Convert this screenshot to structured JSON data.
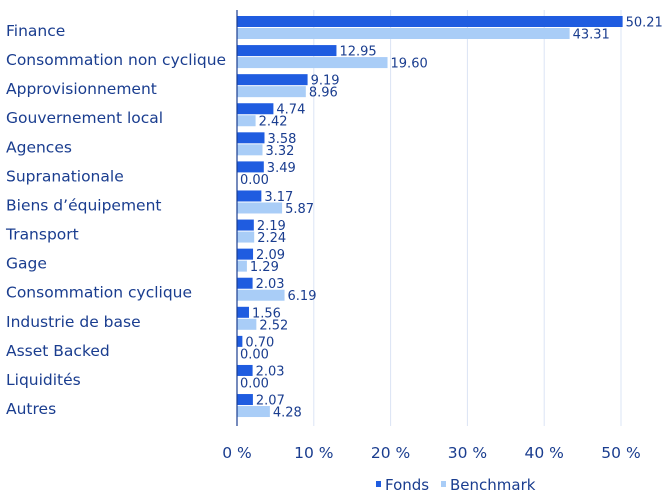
{
  "chart_data": {
    "type": "bar",
    "orientation": "horizontal",
    "categories": [
      "Finance",
      "Consommation non cyclique",
      "Approvisionnement",
      "Gouvernement local",
      "Agences",
      "Supranationale",
      "Biens d’équipement",
      "Transport",
      "Gage",
      "Consommation cyclique",
      "Industrie de base",
      "Asset Backed",
      "Liquidités",
      "Autres"
    ],
    "series": [
      {
        "name": "Fonds",
        "color": "#1f5ce0",
        "values": [
          50.21,
          12.95,
          9.19,
          4.74,
          3.58,
          3.49,
          3.17,
          2.19,
          2.09,
          2.03,
          1.56,
          0.7,
          2.03,
          2.07
        ],
        "labels": [
          "50.21",
          "12.95",
          "9.19",
          "4.74",
          "3.58",
          "3.49",
          "3.17",
          "2.19",
          "2.09",
          "2.03",
          "1.56",
          "0.70",
          "2.03",
          "2.07"
        ]
      },
      {
        "name": "Benchmark",
        "color": "#a9cdf7",
        "values": [
          43.31,
          19.6,
          8.96,
          2.42,
          3.32,
          0.0,
          5.87,
          2.24,
          1.29,
          6.19,
          2.52,
          0.0,
          0.0,
          4.28
        ],
        "labels": [
          "43.31",
          "19.60",
          "8.96",
          "2.42",
          "3.32",
          "0.00",
          "5.87",
          "2.24",
          "1.29",
          "6.19",
          "2.52",
          "0.00",
          "0.00",
          "4.28"
        ]
      }
    ],
    "xlim": [
      0,
      50
    ],
    "xticks": [
      0,
      10,
      20,
      30,
      40,
      50
    ],
    "xtick_labels": [
      "0 %",
      "10 %",
      "20 %",
      "30 %",
      "40 %",
      "50 %"
    ],
    "grid": "vertical",
    "legend_position": "bottom-right",
    "colors": {
      "text": "#1a3d8f",
      "grid": "#dbe4f4",
      "axis": "#1a3d8f"
    }
  }
}
